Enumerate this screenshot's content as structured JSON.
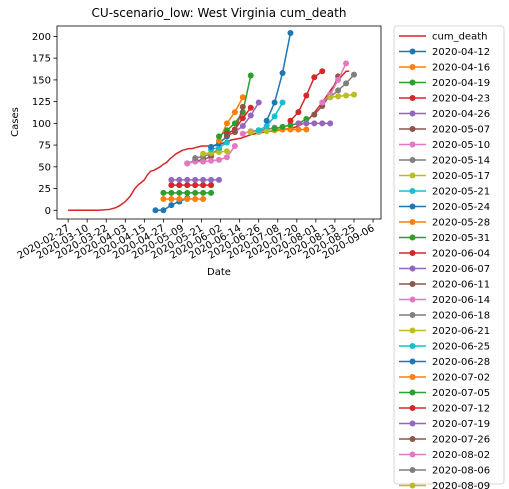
{
  "chart_data": {
    "type": "line",
    "title": "CU-scenario_low: West Virginia cum_death",
    "xlabel": "Date",
    "ylabel": "Cases",
    "x_tick_labels": [
      "2020-02-27",
      "2020-03-10",
      "2020-03-22",
      "2020-04-03",
      "2020-04-15",
      "2020-04-27",
      "2020-05-09",
      "2020-05-21",
      "2020-06-02",
      "2020-06-14",
      "2020-06-26",
      "2020-07-08",
      "2020-07-20",
      "2020-08-01",
      "2020-08-13",
      "2020-08-25",
      "2020-09-06"
    ],
    "y_ticks": [
      0,
      25,
      50,
      75,
      100,
      125,
      150,
      175,
      200
    ],
    "xlim": [
      "2020-02-20",
      "2020-09-11"
    ],
    "ylim": [
      -10,
      212
    ],
    "grid": false,
    "legend": "outside-right",
    "series": [
      {
        "name": "cum_death",
        "color": "#d62728",
        "marker": false,
        "x": [
          "2020-02-27",
          "2020-03-17",
          "2020-03-24",
          "2020-03-28",
          "2020-03-31",
          "2020-04-03",
          "2020-04-06",
          "2020-04-09",
          "2020-04-11",
          "2020-04-13",
          "2020-04-15",
          "2020-04-17",
          "2020-04-19",
          "2020-04-21",
          "2020-04-23",
          "2020-04-25",
          "2020-04-27",
          "2020-04-29",
          "2020-05-01",
          "2020-05-03",
          "2020-05-05",
          "2020-05-07",
          "2020-05-09",
          "2020-05-11",
          "2020-05-13",
          "2020-05-15",
          "2020-05-17",
          "2020-05-19",
          "2020-05-21",
          "2020-05-23",
          "2020-05-25",
          "2020-05-28",
          "2020-05-31",
          "2020-06-03",
          "2020-06-06",
          "2020-06-09",
          "2020-06-12",
          "2020-06-15",
          "2020-06-18",
          "2020-06-21",
          "2020-06-24",
          "2020-06-27",
          "2020-06-30",
          "2020-07-03",
          "2020-07-06",
          "2020-07-09",
          "2020-07-12",
          "2020-07-15",
          "2020-07-18",
          "2020-07-21",
          "2020-07-24",
          "2020-07-27",
          "2020-07-30",
          "2020-08-02",
          "2020-08-05",
          "2020-08-08",
          "2020-08-11",
          "2020-08-14",
          "2020-08-17",
          "2020-08-20",
          "2020-08-22"
        ],
        "y": [
          0,
          0,
          1,
          3,
          6,
          10,
          16,
          25,
          29,
          32,
          35,
          41,
          45,
          46,
          48,
          50,
          53,
          55,
          59,
          62,
          65,
          67,
          69,
          70,
          71,
          71,
          72,
          73,
          74,
          74,
          74,
          74,
          75,
          77,
          79,
          81,
          82,
          83,
          85,
          87,
          88,
          89,
          90,
          91,
          91,
          92,
          93,
          94,
          95,
          97,
          100,
          104,
          110,
          117,
          124,
          132,
          140,
          147,
          154,
          160,
          160
        ]
      },
      {
        "name": "2020-04-12",
        "color": "#1f77b4",
        "x": [
          "2020-04-22",
          "2020-04-27",
          "2020-05-02",
          "2020-05-07",
          "2020-05-12"
        ],
        "y": [
          0,
          0,
          6,
          10,
          14
        ]
      },
      {
        "name": "2020-04-16",
        "color": "#ff7f0e",
        "x": [
          "2020-04-27",
          "2020-05-02",
          "2020-05-07",
          "2020-05-12",
          "2020-05-17",
          "2020-05-22"
        ],
        "y": [
          13,
          13,
          13,
          13,
          13,
          13
        ]
      },
      {
        "name": "2020-04-19",
        "color": "#2ca02c",
        "x": [
          "2020-04-27",
          "2020-05-02",
          "2020-05-07",
          "2020-05-12",
          "2020-05-17",
          "2020-05-22",
          "2020-05-27"
        ],
        "y": [
          20,
          20,
          20,
          20,
          20,
          20,
          20
        ]
      },
      {
        "name": "2020-04-23",
        "color": "#d62728",
        "x": [
          "2020-05-02",
          "2020-05-07",
          "2020-05-12",
          "2020-05-17",
          "2020-05-22",
          "2020-05-27"
        ],
        "y": [
          29,
          29,
          29,
          29,
          29,
          29
        ]
      },
      {
        "name": "2020-04-26",
        "color": "#9467bd",
        "x": [
          "2020-05-02",
          "2020-05-07",
          "2020-05-12",
          "2020-05-17",
          "2020-05-22",
          "2020-05-27",
          "2020-06-01"
        ],
        "y": [
          35,
          35,
          35,
          35,
          35,
          35,
          35
        ]
      },
      {
        "name": "2020-05-07",
        "color": "#8c564b",
        "x": [
          "2020-05-12",
          "2020-05-17",
          "2020-05-22",
          "2020-05-27"
        ],
        "y": [
          54,
          57,
          58,
          62
        ]
      },
      {
        "name": "2020-05-10",
        "color": "#e377c2",
        "x": [
          "2020-05-12",
          "2020-05-17",
          "2020-05-22",
          "2020-05-27",
          "2020-06-01",
          "2020-06-06",
          "2020-06-11"
        ],
        "y": [
          54,
          56,
          56,
          57,
          58,
          61,
          74
        ]
      },
      {
        "name": "2020-05-14",
        "color": "#7f7f7f",
        "x": [
          "2020-05-17",
          "2020-05-22",
          "2020-05-27",
          "2020-06-01"
        ],
        "y": [
          60,
          62,
          65,
          70
        ]
      },
      {
        "name": "2020-05-17",
        "color": "#bcbd22",
        "x": [
          "2020-05-22",
          "2020-05-27",
          "2020-06-01",
          "2020-06-06"
        ],
        "y": [
          65,
          66,
          67,
          68
        ]
      },
      {
        "name": "2020-05-21",
        "color": "#17becf",
        "x": [
          "2020-05-27",
          "2020-06-01",
          "2020-06-06"
        ],
        "y": [
          70,
          72,
          78
        ]
      },
      {
        "name": "2020-05-24",
        "color": "#1f77b4",
        "x": [
          "2020-05-27",
          "2020-06-01",
          "2020-06-06"
        ],
        "y": [
          73,
          77,
          85
        ]
      },
      {
        "name": "2020-05-28",
        "color": "#ff7f0e",
        "x": [
          "2020-06-01",
          "2020-06-06",
          "2020-06-11",
          "2020-06-16"
        ],
        "y": [
          80,
          100,
          113,
          130
        ]
      },
      {
        "name": "2020-05-31",
        "color": "#2ca02c",
        "x": [
          "2020-06-01",
          "2020-06-06",
          "2020-06-11",
          "2020-06-16",
          "2020-06-21"
        ],
        "y": [
          85,
          92,
          100,
          113,
          155
        ]
      },
      {
        "name": "2020-06-04",
        "color": "#d62728",
        "x": [
          "2020-06-06",
          "2020-06-11",
          "2020-06-16",
          "2020-06-21"
        ],
        "y": [
          88,
          93,
          106,
          118
        ]
      },
      {
        "name": "2020-06-07",
        "color": "#9467bd",
        "x": [
          "2020-06-11",
          "2020-06-16",
          "2020-06-21",
          "2020-06-26"
        ],
        "y": [
          90,
          97,
          109,
          124
        ]
      },
      {
        "name": "2020-06-11",
        "color": "#8c564b",
        "x": [
          "2020-06-06",
          "2020-06-11",
          "2020-06-16"
        ],
        "y": [
          86,
          90,
          119
        ]
      },
      {
        "name": "2020-06-14",
        "color": "#e377c2",
        "x": [
          "2020-06-16",
          "2020-06-21",
          "2020-06-26",
          "2020-07-01"
        ],
        "y": [
          88,
          91,
          92,
          92
        ]
      },
      {
        "name": "2020-06-18",
        "color": "#7f7f7f",
        "x": [
          "2020-06-21",
          "2020-06-26",
          "2020-07-01",
          "2020-07-06"
        ],
        "y": [
          90,
          92,
          93,
          95
        ]
      },
      {
        "name": "2020-06-21",
        "color": "#bcbd22",
        "x": [
          "2020-06-21",
          "2020-06-26",
          "2020-07-01",
          "2020-07-06",
          "2020-07-11"
        ],
        "y": [
          90,
          90,
          91,
          92,
          93
        ]
      },
      {
        "name": "2020-06-25",
        "color": "#17becf",
        "x": [
          "2020-06-26",
          "2020-07-01",
          "2020-07-06",
          "2020-07-11"
        ],
        "y": [
          92,
          97,
          108,
          124
        ]
      },
      {
        "name": "2020-06-28",
        "color": "#1f77b4",
        "x": [
          "2020-07-01",
          "2020-07-06",
          "2020-07-11",
          "2020-07-16"
        ],
        "y": [
          103,
          124,
          158,
          204
        ]
      },
      {
        "name": "2020-07-02",
        "color": "#ff7f0e",
        "x": [
          "2020-07-06",
          "2020-07-11",
          "2020-07-16",
          "2020-07-21",
          "2020-07-26"
        ],
        "y": [
          93,
          93,
          93,
          93,
          93
        ]
      },
      {
        "name": "2020-07-05",
        "color": "#2ca02c",
        "x": [
          "2020-07-06",
          "2020-07-11",
          "2020-07-16",
          "2020-07-21",
          "2020-07-26"
        ],
        "y": [
          94,
          96,
          98,
          100,
          105
        ]
      },
      {
        "name": "2020-07-12",
        "color": "#d62728",
        "x": [
          "2020-07-16",
          "2020-07-21",
          "2020-07-26",
          "2020-07-31",
          "2020-08-05"
        ],
        "y": [
          103,
          113,
          132,
          153,
          160
        ]
      },
      {
        "name": "2020-07-19",
        "color": "#9467bd",
        "x": [
          "2020-07-21",
          "2020-07-26",
          "2020-07-31",
          "2020-08-05",
          "2020-08-10"
        ],
        "y": [
          100,
          100,
          100,
          100,
          100
        ]
      },
      {
        "name": "2020-07-26",
        "color": "#8c564b",
        "x": [
          "2020-07-31",
          "2020-08-05",
          "2020-08-10",
          "2020-08-15"
        ],
        "y": [
          110,
          120,
          133,
          154
        ]
      },
      {
        "name": "2020-08-02",
        "color": "#e377c2",
        "x": [
          "2020-08-05",
          "2020-08-10",
          "2020-08-15",
          "2020-08-20"
        ],
        "y": [
          124,
          133,
          150,
          169
        ]
      },
      {
        "name": "2020-08-06",
        "color": "#7f7f7f",
        "x": [
          "2020-08-10",
          "2020-08-15",
          "2020-08-20",
          "2020-08-25"
        ],
        "y": [
          130,
          138,
          146,
          156
        ]
      },
      {
        "name": "2020-08-09",
        "color": "#bcbd22",
        "x": [
          "2020-08-10",
          "2020-08-15",
          "2020-08-20",
          "2020-08-25"
        ],
        "y": [
          130,
          131,
          132,
          133
        ]
      }
    ]
  }
}
